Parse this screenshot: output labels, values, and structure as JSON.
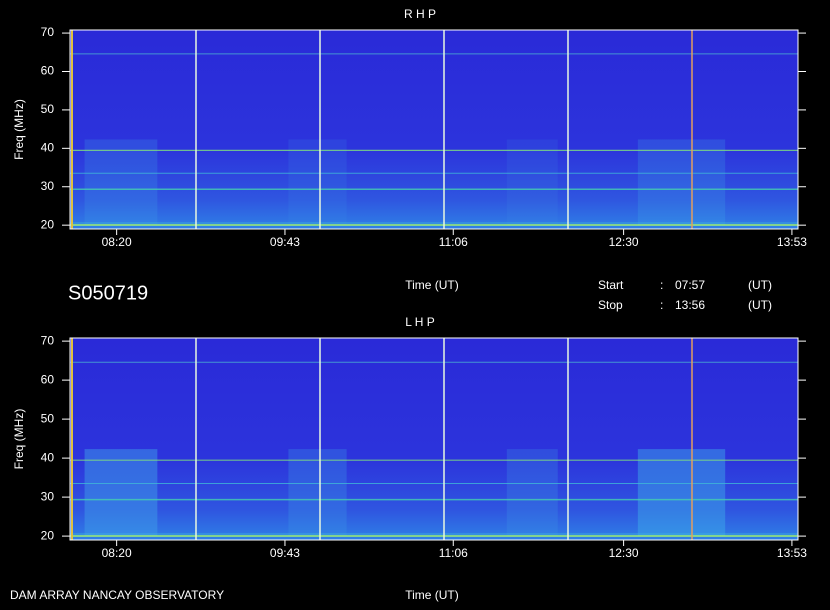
{
  "panels": [
    {
      "title": "R H P",
      "y_label": "Freq (MHz)",
      "ylim": [
        19,
        70.8
      ],
      "yticks": [
        20,
        30,
        40,
        50,
        60,
        70
      ],
      "xticks": [
        "08:20",
        "09:43",
        "11:06",
        "12:30",
        "13:53"
      ],
      "x_label": "Time (UT)"
    },
    {
      "title": "L H P",
      "y_label": "Freq (MHz)",
      "ylim": [
        19,
        70.8
      ],
      "yticks": [
        20,
        30,
        40,
        50,
        60,
        70
      ],
      "xticks": [
        "08:20",
        "09:43",
        "11:06",
        "12:30",
        "13:53"
      ],
      "x_label": "Time (UT)"
    }
  ],
  "station_id": "S050719",
  "start": {
    "label": "Start",
    "sep": ":",
    "time": "07:57",
    "unit": "(UT)"
  },
  "stop": {
    "label": "Stop",
    "sep": ":",
    "time": "13:56",
    "unit": "(UT)"
  },
  "footer": "DAM ARRAY  NANCAY OBSERVATORY"
}
